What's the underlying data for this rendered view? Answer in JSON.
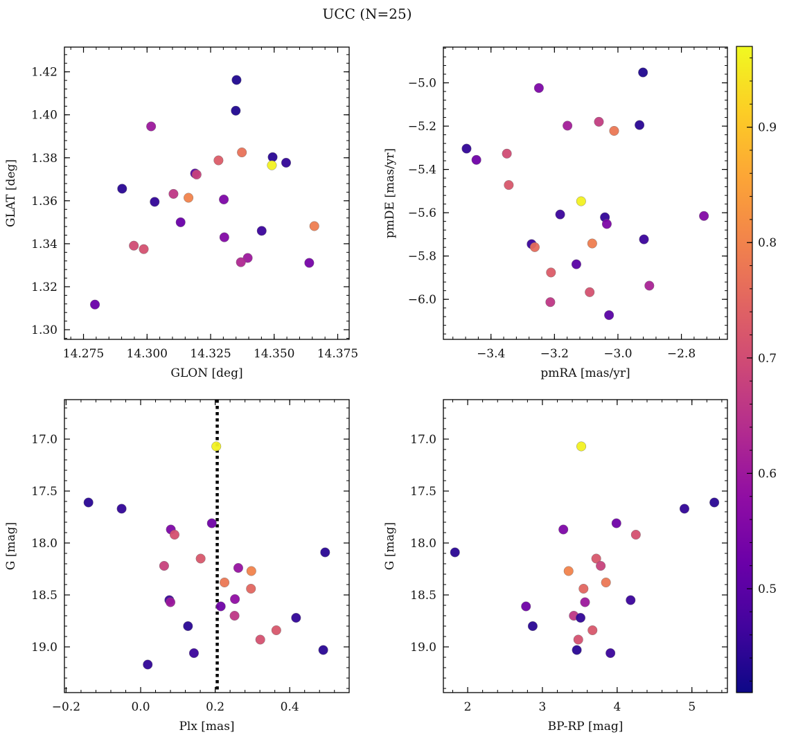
{
  "title": "UCC (N=25)",
  "colorbar": {
    "colormap": "plasma",
    "range": [
      0.41,
      0.97
    ],
    "ticks": [
      0.5,
      0.6,
      0.7,
      0.8,
      0.9
    ],
    "tick_labels": [
      "0.5",
      "0.6",
      "0.7",
      "0.8",
      "0.9"
    ]
  },
  "chart_data": [
    {
      "type": "scatter",
      "xlabel": "GLON [deg]",
      "ylabel": "GLAT [deg]",
      "xlim": [
        14.2675,
        14.3795
      ],
      "ylim": [
        1.2955,
        1.4315
      ],
      "xticks": [
        14.275,
        14.3,
        14.325,
        14.35,
        14.375
      ],
      "xtick_labels": [
        "14.275",
        "14.300",
        "14.325",
        "14.350",
        "14.375"
      ],
      "yticks": [
        1.3,
        1.32,
        1.34,
        1.36,
        1.38,
        1.4,
        1.42
      ],
      "ytick_labels": [
        "1.30",
        "1.32",
        "1.34",
        "1.36",
        "1.38",
        "1.40",
        "1.42"
      ],
      "points": [
        {
          "x": 14.3352,
          "y": 1.4162,
          "c": 0.43
        },
        {
          "x": 14.3349,
          "y": 1.4019,
          "c": 0.43
        },
        {
          "x": 14.3016,
          "y": 1.3946,
          "c": 0.6
        },
        {
          "x": 14.3373,
          "y": 1.3825,
          "c": 0.77
        },
        {
          "x": 14.3494,
          "y": 1.3803,
          "c": 0.44
        },
        {
          "x": 14.3281,
          "y": 1.3788,
          "c": 0.73
        },
        {
          "x": 14.3547,
          "y": 1.3777,
          "c": 0.45
        },
        {
          "x": 14.3491,
          "y": 1.3765,
          "c": 0.96
        },
        {
          "x": 14.3189,
          "y": 1.3727,
          "c": 0.5
        },
        {
          "x": 14.3195,
          "y": 1.3722,
          "c": 0.68
        },
        {
          "x": 14.2902,
          "y": 1.3656,
          "c": 0.44
        },
        {
          "x": 14.3104,
          "y": 1.3632,
          "c": 0.66
        },
        {
          "x": 14.3163,
          "y": 1.3614,
          "c": 0.8
        },
        {
          "x": 14.3302,
          "y": 1.3606,
          "c": 0.55
        },
        {
          "x": 14.303,
          "y": 1.3595,
          "c": 0.45
        },
        {
          "x": 14.3132,
          "y": 1.35,
          "c": 0.52
        },
        {
          "x": 14.3658,
          "y": 1.3482,
          "c": 0.79
        },
        {
          "x": 14.3451,
          "y": 1.346,
          "c": 0.46
        },
        {
          "x": 14.3304,
          "y": 1.343,
          "c": 0.56
        },
        {
          "x": 14.2948,
          "y": 1.3391,
          "c": 0.7
        },
        {
          "x": 14.2987,
          "y": 1.3375,
          "c": 0.71
        },
        {
          "x": 14.3396,
          "y": 1.3334,
          "c": 0.6
        },
        {
          "x": 14.3369,
          "y": 1.3314,
          "c": 0.63
        },
        {
          "x": 14.3638,
          "y": 1.3311,
          "c": 0.54
        },
        {
          "x": 14.2795,
          "y": 1.3117,
          "c": 0.52
        }
      ]
    },
    {
      "type": "scatter",
      "xlabel": "pmRA [mas/yr]",
      "ylabel": "pmDE [mas/yr]",
      "xlim": [
        -3.55,
        -2.655
      ],
      "ylim": [
        -6.185,
        -4.835
      ],
      "xticks": [
        -3.4,
        -3.2,
        -3.0,
        -2.8
      ],
      "xtick_labels": [
        "−3.4",
        "−3.2",
        "−3.0",
        "−2.8"
      ],
      "yticks": [
        -6.0,
        -5.8,
        -5.6,
        -5.4,
        -5.2,
        -5.0
      ],
      "ytick_labels": [
        "−6.0",
        "−5.8",
        "−5.6",
        "−5.4",
        "−5.2",
        "−5.0"
      ],
      "points": [
        {
          "x": -2.921,
          "y": -4.952,
          "c": 0.43
        },
        {
          "x": -3.249,
          "y": -5.024,
          "c": 0.55
        },
        {
          "x": -3.06,
          "y": -5.18,
          "c": 0.67
        },
        {
          "x": -3.159,
          "y": -5.198,
          "c": 0.61
        },
        {
          "x": -2.932,
          "y": -5.195,
          "c": 0.44
        },
        {
          "x": -3.012,
          "y": -5.222,
          "c": 0.78
        },
        {
          "x": -3.477,
          "y": -5.304,
          "c": 0.45
        },
        {
          "x": -3.35,
          "y": -5.327,
          "c": 0.7
        },
        {
          "x": -3.446,
          "y": -5.356,
          "c": 0.53
        },
        {
          "x": -3.344,
          "y": -5.472,
          "c": 0.72
        },
        {
          "x": -3.116,
          "y": -5.547,
          "c": 0.96
        },
        {
          "x": -3.182,
          "y": -5.608,
          "c": 0.46
        },
        {
          "x": -2.729,
          "y": -5.615,
          "c": 0.56
        },
        {
          "x": -3.041,
          "y": -5.621,
          "c": 0.45
        },
        {
          "x": -3.035,
          "y": -5.652,
          "c": 0.55
        },
        {
          "x": -2.918,
          "y": -5.723,
          "c": 0.46
        },
        {
          "x": -3.272,
          "y": -5.745,
          "c": 0.46
        },
        {
          "x": -3.081,
          "y": -5.742,
          "c": 0.79
        },
        {
          "x": -3.262,
          "y": -5.759,
          "c": 0.76
        },
        {
          "x": -3.131,
          "y": -5.838,
          "c": 0.5
        },
        {
          "x": -3.211,
          "y": -5.876,
          "c": 0.73
        },
        {
          "x": -2.901,
          "y": -5.937,
          "c": 0.62
        },
        {
          "x": -3.089,
          "y": -5.967,
          "c": 0.71
        },
        {
          "x": -3.213,
          "y": -6.013,
          "c": 0.66
        },
        {
          "x": -3.028,
          "y": -6.073,
          "c": 0.5
        }
      ]
    },
    {
      "type": "scatter",
      "xlabel": "Plx [mas]",
      "ylabel": "G [mag]",
      "xlim": [
        -0.2045,
        0.5595
      ],
      "ylim": [
        19.44,
        16.62
      ],
      "xticks": [
        -0.2,
        0.0,
        0.2,
        0.4
      ],
      "xtick_labels": [
        "−0.2",
        "0.0",
        "0.2",
        "0.4"
      ],
      "yticks": [
        17.0,
        17.5,
        18.0,
        18.5,
        19.0
      ],
      "ytick_labels": [
        "17.0",
        "17.5",
        "18.0",
        "18.5",
        "19.0"
      ],
      "vline": {
        "x": 0.2055,
        "style": "dotted",
        "color": "#000000"
      },
      "points": [
        {
          "x": 0.203,
          "y": 17.07,
          "c": 0.96
        },
        {
          "x": -0.14,
          "y": 17.61,
          "c": 0.44
        },
        {
          "x": -0.051,
          "y": 17.67,
          "c": 0.45
        },
        {
          "x": 0.081,
          "y": 17.87,
          "c": 0.55
        },
        {
          "x": 0.091,
          "y": 17.92,
          "c": 0.71
        },
        {
          "x": 0.191,
          "y": 17.81,
          "c": 0.53
        },
        {
          "x": 0.495,
          "y": 18.09,
          "c": 0.44
        },
        {
          "x": 0.161,
          "y": 18.15,
          "c": 0.72
        },
        {
          "x": 0.063,
          "y": 18.22,
          "c": 0.68
        },
        {
          "x": 0.262,
          "y": 18.24,
          "c": 0.59
        },
        {
          "x": 0.297,
          "y": 18.27,
          "c": 0.8
        },
        {
          "x": 0.225,
          "y": 18.38,
          "c": 0.78
        },
        {
          "x": 0.296,
          "y": 18.44,
          "c": 0.75
        },
        {
          "x": 0.077,
          "y": 18.55,
          "c": 0.46
        },
        {
          "x": 0.08,
          "y": 18.57,
          "c": 0.6
        },
        {
          "x": 0.253,
          "y": 18.54,
          "c": 0.58
        },
        {
          "x": 0.215,
          "y": 18.61,
          "c": 0.53
        },
        {
          "x": 0.252,
          "y": 18.7,
          "c": 0.66
        },
        {
          "x": 0.417,
          "y": 18.72,
          "c": 0.45
        },
        {
          "x": 0.127,
          "y": 18.8,
          "c": 0.44
        },
        {
          "x": 0.364,
          "y": 18.84,
          "c": 0.72
        },
        {
          "x": 0.321,
          "y": 18.93,
          "c": 0.71
        },
        {
          "x": 0.49,
          "y": 19.03,
          "c": 0.44
        },
        {
          "x": 0.143,
          "y": 19.06,
          "c": 0.46
        },
        {
          "x": 0.019,
          "y": 19.17,
          "c": 0.45
        }
      ]
    },
    {
      "type": "scatter",
      "xlabel": "BP-RP [mag]",
      "ylabel": "G [mag]",
      "xlim": [
        1.675,
        5.475
      ],
      "ylim": [
        19.44,
        16.62
      ],
      "xticks": [
        2,
        3,
        4,
        5
      ],
      "xtick_labels": [
        "2",
        "3",
        "4",
        "5"
      ],
      "yticks": [
        17.0,
        17.5,
        18.0,
        18.5,
        19.0
      ],
      "ytick_labels": [
        "17.0",
        "17.5",
        "18.0",
        "18.5",
        "19.0"
      ],
      "points": [
        {
          "x": 3.52,
          "y": 17.07,
          "c": 0.96
        },
        {
          "x": 5.3,
          "y": 17.61,
          "c": 0.44
        },
        {
          "x": 4.9,
          "y": 17.67,
          "c": 0.45
        },
        {
          "x": 3.99,
          "y": 17.81,
          "c": 0.53
        },
        {
          "x": 3.28,
          "y": 17.87,
          "c": 0.55
        },
        {
          "x": 4.25,
          "y": 17.92,
          "c": 0.71
        },
        {
          "x": 1.83,
          "y": 18.09,
          "c": 0.44
        },
        {
          "x": 3.72,
          "y": 18.15,
          "c": 0.72
        },
        {
          "x": 3.78,
          "y": 18.22,
          "c": 0.68
        },
        {
          "x": 3.35,
          "y": 18.27,
          "c": 0.8
        },
        {
          "x": 3.85,
          "y": 18.38,
          "c": 0.78
        },
        {
          "x": 3.55,
          "y": 18.44,
          "c": 0.75
        },
        {
          "x": 4.18,
          "y": 18.55,
          "c": 0.46
        },
        {
          "x": 3.57,
          "y": 18.57,
          "c": 0.6
        },
        {
          "x": 2.78,
          "y": 18.61,
          "c": 0.53
        },
        {
          "x": 3.42,
          "y": 18.7,
          "c": 0.66
        },
        {
          "x": 3.51,
          "y": 18.72,
          "c": 0.45
        },
        {
          "x": 2.87,
          "y": 18.8,
          "c": 0.44
        },
        {
          "x": 3.67,
          "y": 18.84,
          "c": 0.72
        },
        {
          "x": 3.48,
          "y": 18.93,
          "c": 0.71
        },
        {
          "x": 3.46,
          "y": 19.03,
          "c": 0.44
        },
        {
          "x": 3.91,
          "y": 19.06,
          "c": 0.46
        }
      ]
    }
  ]
}
